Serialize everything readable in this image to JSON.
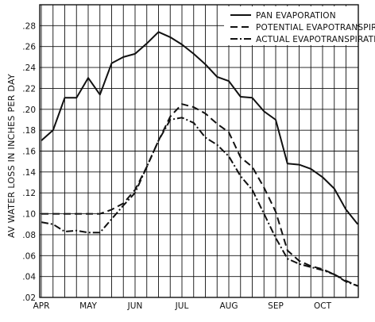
{
  "chart_data": {
    "type": "line",
    "title": "",
    "xlabel": "",
    "ylabel": "AV WATER LOSS IN INCHES PER DAY",
    "ylim": [
      0.02,
      0.3
    ],
    "x_tick_labels": [
      "APR",
      "MAY",
      "JUN",
      "JUL",
      "AUG",
      "SEP",
      "OCT"
    ],
    "y_tick_labels": [
      ".02",
      ".04",
      ".06",
      ".08",
      ".10",
      ".12",
      ".14",
      ".16",
      ".18",
      ".20",
      ".22",
      ".24",
      ".26",
      ".28"
    ],
    "y_ticks": [
      0.02,
      0.04,
      0.06,
      0.08,
      0.1,
      0.12,
      0.14,
      0.16,
      0.18,
      0.2,
      0.22,
      0.24,
      0.26,
      0.28
    ],
    "x_ticks": [
      0,
      1,
      2,
      3,
      4,
      5,
      6
    ],
    "x_grid_step": 0.25,
    "grid": true,
    "legend_position": "top-right",
    "series": [
      {
        "name": "PAN EVAPORATION",
        "dash": "solid",
        "x": [
          0,
          0.25,
          0.5,
          0.75,
          1.0,
          1.25,
          1.5,
          1.75,
          2.0,
          2.25,
          2.5,
          2.75,
          3.0,
          3.25,
          3.5,
          3.75,
          4.0,
          4.25,
          4.5,
          4.75,
          5.0,
          5.25,
          5.5,
          5.75,
          6.0,
          6.25,
          6.5,
          6.75
        ],
        "y": [
          0.17,
          0.18,
          0.211,
          0.211,
          0.23,
          0.214,
          0.244,
          0.25,
          0.253,
          0.263,
          0.274,
          0.269,
          0.262,
          0.253,
          0.243,
          0.231,
          0.227,
          0.212,
          0.211,
          0.198,
          0.19,
          0.148,
          0.147,
          0.143,
          0.135,
          0.124,
          0.104,
          0.09
        ]
      },
      {
        "name": "POTENTIAL EVAPOTRANSPIRATION",
        "dash": "dashed",
        "x": [
          0,
          0.5,
          0.75,
          1.0,
          1.25,
          1.5,
          1.75,
          2.0,
          2.25,
          2.5,
          2.75,
          3.0,
          3.25,
          3.5,
          3.75,
          4.0,
          4.25,
          4.5,
          4.75,
          5.0,
          5.25,
          5.5,
          5.75,
          6.0,
          6.25,
          6.5,
          6.75
        ],
        "y": [
          0.1,
          0.1,
          0.1,
          0.1,
          0.1,
          0.104,
          0.11,
          0.123,
          0.145,
          0.17,
          0.193,
          0.205,
          0.202,
          0.196,
          0.186,
          0.178,
          0.154,
          0.145,
          0.125,
          0.102,
          0.065,
          0.055,
          0.05,
          0.047,
          0.042,
          0.036,
          0.031
        ]
      },
      {
        "name": "ACTUAL EVAPOTRANSPIRATION",
        "dash": "dashdot",
        "x": [
          0,
          0.25,
          0.5,
          0.75,
          1.0,
          1.25,
          1.5,
          1.75,
          2.0,
          2.25,
          2.5,
          2.75,
          3.0,
          3.25,
          3.5,
          3.75,
          4.0,
          4.25,
          4.5,
          4.75,
          5.0,
          5.25,
          5.5,
          5.75,
          6.0,
          6.25,
          6.5,
          6.75
        ],
        "y": [
          0.092,
          0.09,
          0.083,
          0.084,
          0.082,
          0.082,
          0.095,
          0.108,
          0.12,
          0.145,
          0.17,
          0.19,
          0.192,
          0.187,
          0.173,
          0.166,
          0.155,
          0.136,
          0.123,
          0.1,
          0.077,
          0.057,
          0.052,
          0.049,
          0.046,
          0.042,
          0.035,
          0.031
        ]
      }
    ]
  }
}
